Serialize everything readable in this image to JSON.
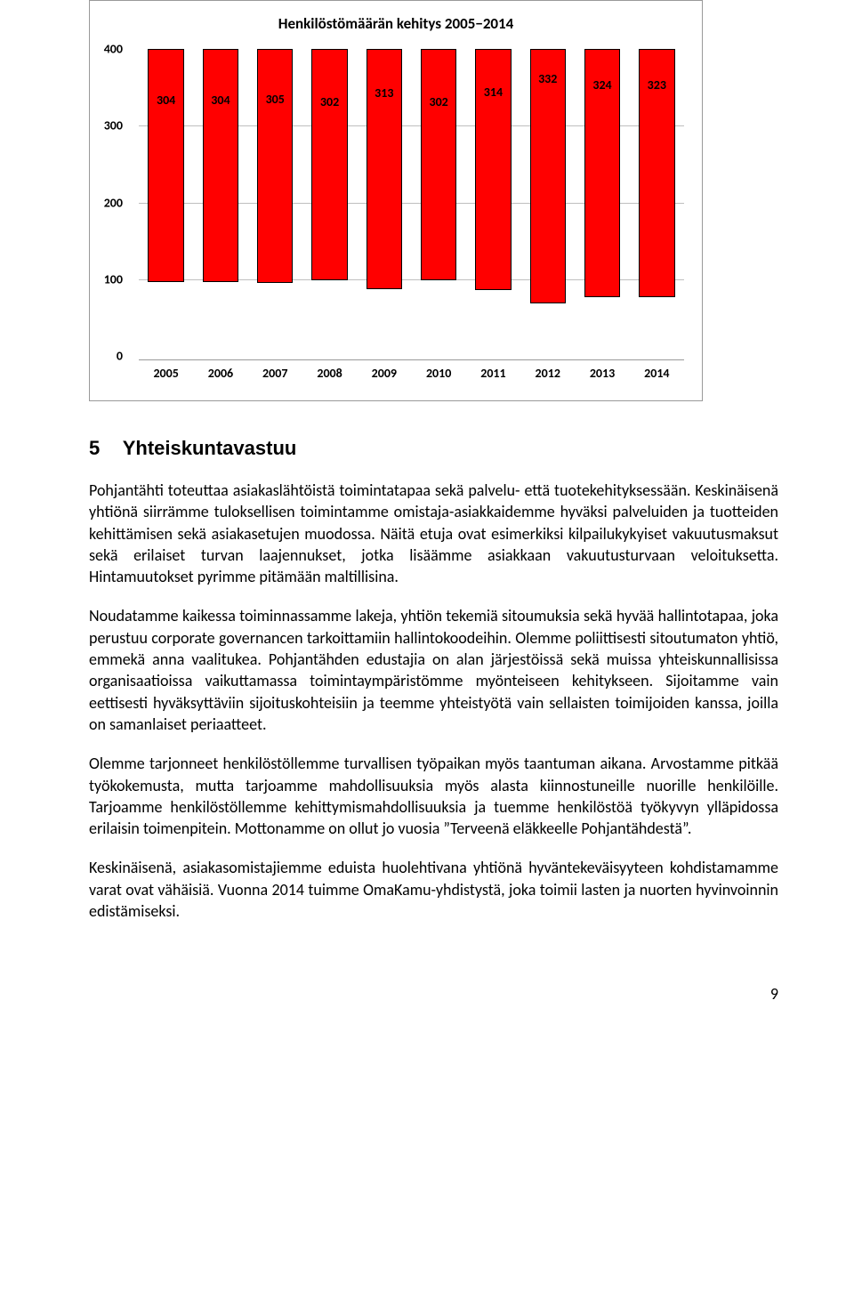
{
  "chart": {
    "type": "bar",
    "title": "Henkilöstömäärän kehitys 2005−2014",
    "categories": [
      "2005",
      "2006",
      "2007",
      "2008",
      "2009",
      "2010",
      "2011",
      "2012",
      "2013",
      "2014"
    ],
    "values": [
      304,
      304,
      305,
      302,
      313,
      302,
      314,
      332,
      324,
      323
    ],
    "ymax": 400,
    "yticks": [
      0,
      100,
      200,
      300,
      400
    ],
    "bar_fill": "#ff0000",
    "bar_border": "#000000",
    "grid_color": "#bfbfbf",
    "background": "#ffffff",
    "title_fontsize": 17,
    "label_fontsize": 14
  },
  "section": {
    "number": "5",
    "title": "Yhteiskuntavastuu"
  },
  "paragraphs": [
    "Pohjantähti toteuttaa asiakaslähtöistä toimintatapaa sekä palvelu- että tuotekehityksessään. Keskinäisenä yhtiönä siirrämme tuloksellisen toimintamme omistaja-asiakkaidemme hyväksi palveluiden ja tuotteiden kehittämisen sekä asiakasetujen muodossa. Näitä etuja ovat esimerkiksi kilpailukykyiset vakuutusmaksut sekä erilaiset turvan laajennukset, jotka lisäämme asiakkaan vakuutusturvaan veloituksetta. Hintamuutokset pyrimme pitämään maltillisina.",
    "Noudatamme kaikessa toiminnassamme lakeja, yhtiön tekemiä sitoumuksia sekä hyvää hallintotapaa, joka perustuu corporate governancen tarkoittamiin hallintokoodeihin. Olemme poliittisesti sitoutumaton yhtiö, emmekä anna vaalitukea. Pohjantähden edustajia on alan järjestöissä sekä muissa yhteiskunnallisissa organisaatioissa vaikuttamassa toimintaympäristömme myönteiseen kehitykseen. Sijoitamme vain eettisesti hyväksyttäviin sijoituskohteisiin ja teemme yhteistyötä vain sellaisten toimijoiden kanssa, joilla on samanlaiset periaatteet.",
    "Olemme tarjonneet henkilöstöllemme turvallisen työpaikan myös taantuman aikana. Arvostamme pitkää työkokemusta, mutta tarjoamme mahdollisuuksia myös alasta kiinnostuneille nuorille henkilöille. Tarjoamme henkilöstöllemme kehittymismahdollisuuksia ja tuemme henkilöstöä työkyvyn ylläpidossa erilaisin toimenpitein. Mottonamme on ollut jo vuosia ”Terveenä eläkkeelle Pohjantähdestä”.",
    "Keskinäisenä, asiakasomistajiemme eduista huolehtivana yhtiönä hyväntekeväisyyteen kohdistamamme varat ovat vähäisiä. Vuonna 2014 tuimme OmaKamu-yhdistystä, joka toimii lasten ja nuorten hyvinvoinnin edistämiseksi."
  ],
  "page_number": "9"
}
